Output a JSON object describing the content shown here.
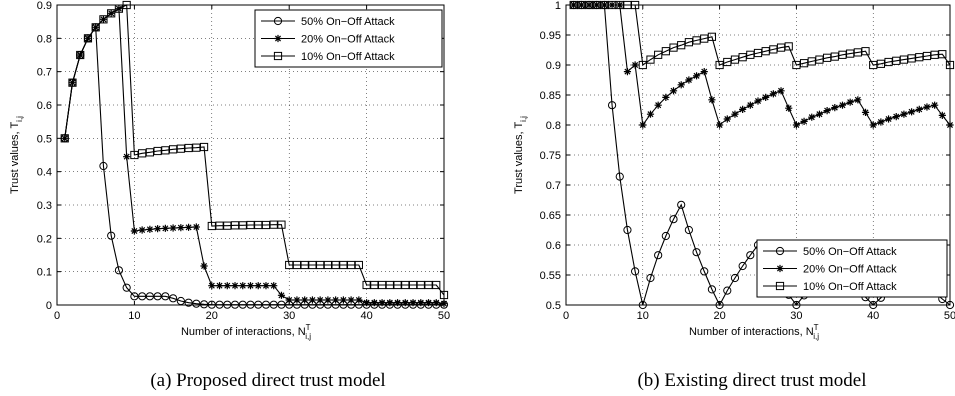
{
  "chart_data": [
    {
      "type": "line",
      "caption": "(a)  Proposed direct trust model",
      "xlabel": "Number of interactions, N",
      "xlabel_sup": "T",
      "xlabel_sub": "i,j",
      "ylabel": "Trust values, T",
      "ylabel_sub": "i,j",
      "xlim": [
        0,
        50
      ],
      "ylim": [
        0,
        0.9
      ],
      "xticks": [
        0,
        10,
        20,
        30,
        40,
        50
      ],
      "yticks": [
        0,
        0.1,
        0.2,
        0.3,
        0.4,
        0.5,
        0.6,
        0.7,
        0.8,
        0.9
      ],
      "ytick_labels": [
        "0",
        "0.1",
        "0.2",
        "0.3",
        "0.4",
        "0.5",
        "0.6",
        "0.7",
        "0.8",
        "0.9"
      ],
      "grid": true,
      "legend_position": "top-right",
      "x": [
        1,
        2,
        3,
        4,
        5,
        6,
        7,
        8,
        9,
        10,
        11,
        12,
        13,
        14,
        15,
        16,
        17,
        18,
        19,
        20,
        21,
        22,
        23,
        24,
        25,
        26,
        27,
        28,
        29,
        30,
        31,
        32,
        33,
        34,
        35,
        36,
        37,
        38,
        39,
        40,
        41,
        42,
        43,
        44,
        45,
        46,
        47,
        48,
        49,
        50
      ],
      "series": [
        {
          "name": "50% On−Off Attack",
          "marker": "circle",
          "values": [
            0.5,
            0.667,
            0.75,
            0.8,
            0.833,
            0.417,
            0.208,
            0.104,
            0.052,
            0.026,
            0.026,
            0.026,
            0.026,
            0.026,
            0.02,
            0.012,
            0.007,
            0.004,
            0.002,
            0.001,
            0.001,
            0.001,
            0.001,
            0.001,
            0.001,
            0.001,
            0.001,
            0.001,
            0.001,
            0.001,
            0.001,
            0.001,
            0.001,
            0.001,
            0.001,
            0.001,
            0.001,
            0.001,
            0.001,
            0.001,
            0.001,
            0.001,
            0.001,
            0.001,
            0.001,
            0.001,
            0.001,
            0.001,
            0.001,
            0.001
          ]
        },
        {
          "name": "20% On−Off Attack",
          "marker": "star",
          "values": [
            0.5,
            0.667,
            0.75,
            0.8,
            0.833,
            0.857,
            0.875,
            0.889,
            0.445,
            0.222,
            0.225,
            0.227,
            0.229,
            0.23,
            0.231,
            0.232,
            0.233,
            0.234,
            0.117,
            0.058,
            0.058,
            0.058,
            0.058,
            0.058,
            0.058,
            0.058,
            0.058,
            0.058,
            0.029,
            0.015,
            0.015,
            0.015,
            0.015,
            0.015,
            0.015,
            0.015,
            0.015,
            0.015,
            0.015,
            0.007,
            0.007,
            0.007,
            0.007,
            0.007,
            0.007,
            0.007,
            0.007,
            0.007,
            0.007,
            0.004
          ]
        },
        {
          "name": "10% On−Off Attack",
          "marker": "square",
          "values": [
            0.5,
            0.667,
            0.75,
            0.8,
            0.833,
            0.857,
            0.875,
            0.889,
            0.9,
            0.45,
            0.455,
            0.458,
            0.462,
            0.464,
            0.467,
            0.469,
            0.471,
            0.472,
            0.474,
            0.237,
            0.238,
            0.238,
            0.239,
            0.239,
            0.24,
            0.24,
            0.24,
            0.241,
            0.241,
            0.12,
            0.12,
            0.12,
            0.12,
            0.12,
            0.12,
            0.12,
            0.12,
            0.12,
            0.12,
            0.06,
            0.06,
            0.06,
            0.06,
            0.06,
            0.06,
            0.06,
            0.06,
            0.06,
            0.06,
            0.03
          ]
        }
      ]
    },
    {
      "type": "line",
      "caption": "(b)  Existing direct trust model",
      "xlabel": "Number of interactions, N",
      "xlabel_sup": "T",
      "xlabel_sub": "i,j",
      "ylabel": "Trust values, T",
      "ylabel_sub": "i,j",
      "xlim": [
        0,
        50
      ],
      "ylim": [
        0.5,
        1
      ],
      "xticks": [
        0,
        10,
        20,
        30,
        40,
        50
      ],
      "yticks": [
        0.5,
        0.55,
        0.6,
        0.65,
        0.7,
        0.75,
        0.8,
        0.85,
        0.9,
        0.95,
        1
      ],
      "ytick_labels": [
        "0.5",
        "0.55",
        "0.6",
        "0.65",
        "0.7",
        "0.75",
        "0.8",
        "0.85",
        "0.9",
        "0.95",
        "1"
      ],
      "grid": true,
      "legend_position": "lower-right",
      "x": [
        1,
        2,
        3,
        4,
        5,
        6,
        7,
        8,
        9,
        10,
        11,
        12,
        13,
        14,
        15,
        16,
        17,
        18,
        19,
        20,
        21,
        22,
        23,
        24,
        25,
        26,
        27,
        28,
        29,
        30,
        31,
        32,
        33,
        34,
        35,
        36,
        37,
        38,
        39,
        40,
        41,
        42,
        43,
        44,
        45,
        46,
        47,
        48,
        49,
        50
      ],
      "series": [
        {
          "name": "50% On−Off Attack",
          "marker": "circle",
          "values": [
            1,
            1,
            1,
            1,
            1,
            0.833,
            0.714,
            0.625,
            0.556,
            0.5,
            0.545,
            0.583,
            0.615,
            0.643,
            0.667,
            0.625,
            0.588,
            0.556,
            0.526,
            0.5,
            0.524,
            0.545,
            0.565,
            0.583,
            0.6,
            0.577,
            0.556,
            0.536,
            0.517,
            0.5,
            0.516,
            0.531,
            0.545,
            0.559,
            0.571,
            0.556,
            0.541,
            0.526,
            0.513,
            0.5,
            0.512,
            0.524,
            0.535,
            0.545,
            0.556,
            0.543,
            0.532,
            0.521,
            0.51,
            0.5
          ]
        },
        {
          "name": "20% On−Off Attack",
          "marker": "star",
          "values": [
            1,
            1,
            1,
            1,
            1,
            1,
            1,
            0.889,
            0.9,
            0.8,
            0.818,
            0.833,
            0.846,
            0.857,
            0.867,
            0.875,
            0.882,
            0.889,
            0.842,
            0.8,
            0.81,
            0.818,
            0.826,
            0.833,
            0.84,
            0.846,
            0.852,
            0.857,
            0.828,
            0.8,
            0.806,
            0.813,
            0.818,
            0.824,
            0.829,
            0.833,
            0.838,
            0.842,
            0.821,
            0.8,
            0.805,
            0.81,
            0.814,
            0.818,
            0.822,
            0.826,
            0.83,
            0.833,
            0.816,
            0.8
          ]
        },
        {
          "name": "10% On−Off Attack",
          "marker": "square",
          "values": [
            1,
            1,
            1,
            1,
            1,
            1,
            1,
            1,
            1,
            0.9,
            0.909,
            0.917,
            0.923,
            0.929,
            0.933,
            0.938,
            0.941,
            0.944,
            0.947,
            0.9,
            0.905,
            0.909,
            0.913,
            0.917,
            0.92,
            0.923,
            0.926,
            0.929,
            0.931,
            0.9,
            0.903,
            0.906,
            0.909,
            0.912,
            0.914,
            0.917,
            0.919,
            0.921,
            0.923,
            0.9,
            0.902,
            0.905,
            0.907,
            0.909,
            0.911,
            0.913,
            0.915,
            0.917,
            0.918,
            0.9
          ]
        }
      ]
    }
  ]
}
